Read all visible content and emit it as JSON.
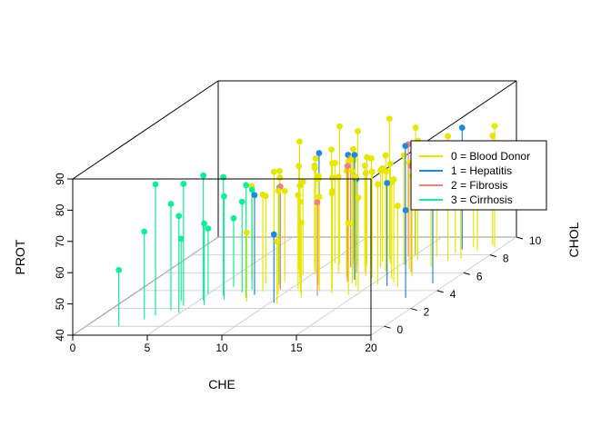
{
  "chart_data": {
    "type": "scatter",
    "subtype": "3d-histogram-stems",
    "title": "",
    "xlabel": "CHE",
    "ylabel": "CHOL",
    "zlabel": "PROT",
    "xlim": [
      0,
      20
    ],
    "ylim": [
      -1,
      10
    ],
    "zlim": [
      40,
      90
    ],
    "x_ticks": [
      0,
      5,
      10,
      15,
      20
    ],
    "y_ticks": [
      0,
      2,
      4,
      6,
      8,
      10
    ],
    "z_ticks": [
      40,
      50,
      60,
      70,
      80,
      90
    ],
    "grid": true,
    "legend_position": "right",
    "series": [
      {
        "name": "0 = Blood Donor",
        "color": "#e6e600",
        "points": [
          [
            6.5,
            5.2,
            70
          ],
          [
            7.2,
            6.1,
            72
          ],
          [
            7.8,
            4.8,
            68
          ],
          [
            8.1,
            5.5,
            74
          ],
          [
            8.4,
            3.9,
            71
          ],
          [
            8.6,
            6.4,
            73
          ],
          [
            8.9,
            5.0,
            69
          ],
          [
            9.1,
            4.4,
            75
          ],
          [
            9.3,
            6.8,
            72
          ],
          [
            9.5,
            5.7,
            70
          ],
          [
            9.7,
            3.6,
            73
          ],
          [
            9.9,
            6.2,
            76
          ],
          [
            10.0,
            4.9,
            71
          ],
          [
            10.2,
            5.8,
            74
          ],
          [
            10.4,
            7.1,
            72
          ],
          [
            10.5,
            4.2,
            70
          ],
          [
            10.7,
            6.5,
            78
          ],
          [
            10.9,
            5.3,
            73
          ],
          [
            11.0,
            3.8,
            69
          ],
          [
            11.2,
            6.0,
            75
          ],
          [
            11.4,
            7.4,
            72
          ],
          [
            11.5,
            4.6,
            74
          ],
          [
            11.7,
            5.9,
            71
          ],
          [
            11.8,
            6.9,
            77
          ],
          [
            12.0,
            5.1,
            73
          ],
          [
            12.1,
            4.0,
            70
          ],
          [
            12.3,
            6.3,
            76
          ],
          [
            12.4,
            7.6,
            72
          ],
          [
            12.6,
            5.5,
            74
          ],
          [
            12.7,
            4.3,
            71
          ],
          [
            12.9,
            6.7,
            75
          ],
          [
            13.0,
            5.2,
            78
          ],
          [
            13.2,
            3.7,
            72
          ],
          [
            13.3,
            6.1,
            74
          ],
          [
            13.5,
            7.2,
            70
          ],
          [
            13.6,
            4.8,
            76
          ],
          [
            13.8,
            5.6,
            73
          ],
          [
            13.9,
            6.6,
            71
          ],
          [
            14.1,
            4.5,
            75
          ],
          [
            14.2,
            7.0,
            72
          ],
          [
            14.4,
            5.4,
            74
          ],
          [
            14.6,
            6.2,
            77
          ],
          [
            14.8,
            3.9,
            70
          ],
          [
            15.0,
            5.8,
            73
          ],
          [
            15.2,
            6.9,
            75
          ],
          [
            15.4,
            4.7,
            72
          ],
          [
            15.6,
            7.5,
            78
          ],
          [
            15.8,
            5.3,
            71
          ],
          [
            16.0,
            6.4,
            74
          ],
          [
            16.3,
            4.9,
            73
          ],
          [
            16.6,
            7.8,
            76
          ],
          [
            16.9,
            5.6,
            72
          ],
          [
            17.2,
            6.7,
            75
          ],
          [
            17.5,
            8.2,
            74
          ],
          [
            17.8,
            7.3,
            80
          ],
          [
            18.1,
            8.9,
            73
          ],
          [
            18.4,
            7.6,
            76
          ],
          [
            18.8,
            8.4,
            72
          ],
          [
            19.2,
            9.1,
            75
          ],
          [
            19.6,
            8.8,
            79
          ],
          [
            9.0,
            6.0,
            82
          ],
          [
            10.8,
            7.0,
            84
          ],
          [
            12.2,
            6.8,
            83
          ],
          [
            13.7,
            7.5,
            85
          ],
          [
            15.1,
            7.9,
            81
          ],
          [
            11.6,
            3.2,
            64
          ],
          [
            14.5,
            3.5,
            63
          ],
          [
            17.0,
            4.4,
            66
          ],
          [
            8.3,
            2.8,
            62
          ],
          [
            10.6,
            2.5,
            60
          ]
        ]
      },
      {
        "name": "1 = Hepatitis",
        "color": "#2288dd",
        "points": [
          [
            8.2,
            3.5,
            72
          ],
          [
            9.6,
            6.8,
            76
          ],
          [
            11.1,
            7.3,
            74
          ],
          [
            12.8,
            6.0,
            70
          ],
          [
            13.4,
            5.2,
            80
          ],
          [
            15.3,
            6.9,
            78
          ],
          [
            16.2,
            4.5,
            73
          ],
          [
            17.6,
            8.6,
            79
          ],
          [
            19.0,
            4.8,
            71
          ],
          [
            10.3,
            2.6,
            62
          ],
          [
            14.9,
            8.1,
            75
          ],
          [
            18.6,
            3.2,
            68
          ]
        ]
      },
      {
        "name": "2 = Fibrosis",
        "color": "#f08080",
        "points": [
          [
            9.4,
            4.1,
            73
          ],
          [
            11.9,
            6.6,
            75
          ],
          [
            13.1,
            5.0,
            77
          ],
          [
            14.7,
            7.8,
            76
          ],
          [
            12.5,
            3.4,
            70
          ],
          [
            16.4,
            6.1,
            74
          ]
        ]
      },
      {
        "name": "3 = Cirrhosis",
        "color": "#11ee99",
        "points": [
          [
            2.2,
            0.0,
            58
          ],
          [
            3.2,
            0.8,
            68
          ],
          [
            3.6,
            1.2,
            82
          ],
          [
            4.1,
            1.8,
            74
          ],
          [
            4.5,
            2.3,
            79
          ],
          [
            4.9,
            1.5,
            71
          ],
          [
            5.3,
            2.9,
            80
          ],
          [
            5.8,
            2.4,
            66
          ],
          [
            6.2,
            3.4,
            78
          ],
          [
            6.6,
            3.0,
            73
          ],
          [
            7.1,
            3.8,
            69
          ],
          [
            7.5,
            4.1,
            72
          ],
          [
            7.9,
            3.2,
            76
          ],
          [
            5.0,
            3.6,
            61
          ],
          [
            6.0,
            4.4,
            62
          ],
          [
            3.9,
            2.8,
            60
          ],
          [
            8.8,
            4.7,
            71
          ]
        ]
      }
    ]
  }
}
